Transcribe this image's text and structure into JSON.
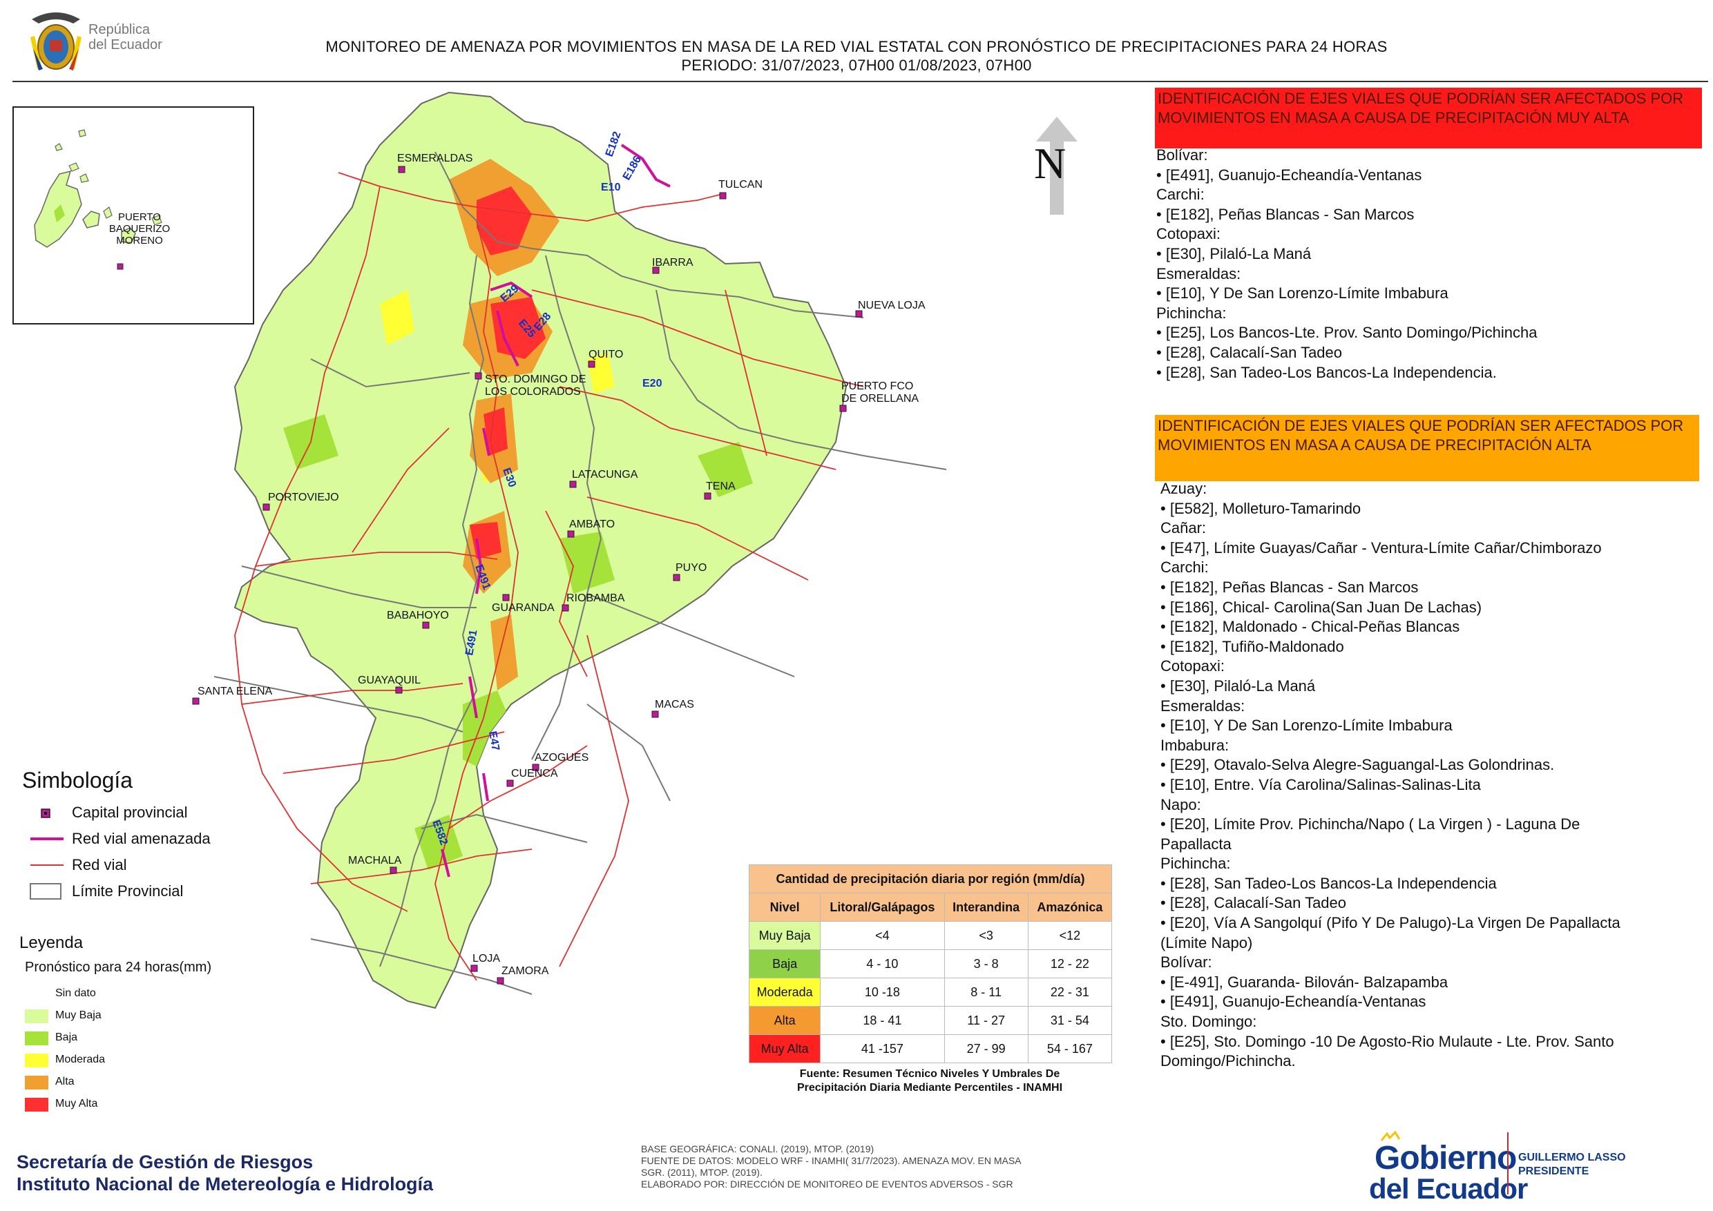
{
  "header": {
    "republic_line1": "República",
    "republic_line2": "del Ecuador",
    "title_line1": "MONITOREO DE AMENAZA POR MOVIMIENTOS EN MASA DE LA RED VIAL  ESTATAL  CON PRONÓSTICO  DE  PRECIPITACIONES PARA 24 HORAS",
    "title_line2": "PERIODO: 31/07/2023, 07H00 01/08/2023, 07H00"
  },
  "inset": {
    "label_line1": "PUERTO",
    "label_line2": "BAQUERIZO",
    "label_line3": "MORENO"
  },
  "map": {
    "north_label": "N",
    "cities": [
      {
        "name": "ESMERALDAS"
      },
      {
        "name": "TULCAN"
      },
      {
        "name": "IBARRA"
      },
      {
        "name": "NUEVA LOJA"
      },
      {
        "name": "QUITO"
      },
      {
        "name": "STO. DOMINGO DE"
      },
      {
        "name": "LOS COLORADOS"
      },
      {
        "name": "PUERTO FCO"
      },
      {
        "name": "DE ORELLANA"
      },
      {
        "name": "LATACUNGA"
      },
      {
        "name": "TENA"
      },
      {
        "name": "PORTOVIEJO"
      },
      {
        "name": "AMBATO"
      },
      {
        "name": "PUYO"
      },
      {
        "name": "GUARANDA"
      },
      {
        "name": "RIOBAMBA"
      },
      {
        "name": "BABAHOYO"
      },
      {
        "name": "GUAYAQUIL"
      },
      {
        "name": "SANTA ELENA"
      },
      {
        "name": "MACAS"
      },
      {
        "name": "AZOGUES"
      },
      {
        "name": "CUENCA"
      },
      {
        "name": "MACHALA"
      },
      {
        "name": "LOJA"
      },
      {
        "name": "ZAMORA"
      }
    ],
    "road_labels": [
      "E182",
      "E186",
      "E10",
      "E29",
      "E25",
      "E28",
      "E20",
      "E30",
      "E491",
      "E491",
      "E47",
      "E582"
    ],
    "colors": {
      "muy_baja": "#d9fb9c",
      "baja": "#a6e33a",
      "moderada": "#ffff33",
      "alta": "#f0a030",
      "muy_alta": "#ff3030",
      "road": "#e03030",
      "threatened_road": "#d0109a",
      "boundary": "#777777",
      "capital": "#c0189a"
    }
  },
  "red_panel": {
    "title": "IDENTIFICACIÓN DE EJES VIALES QUE PODRÍAN SER AFECTADOS POR MOVIMIENTOS EN MASA A CAUSA DE PRECIPITACIÓN MUY ALTA",
    "lines": [
      "Bolívar:",
      "• [E491], Guanujo-Echeandía-Ventanas",
      "Carchi:",
      "• [E182], Peñas Blancas - San Marcos",
      "Cotopaxi:",
      "• [E30], Pilaló-La Maná",
      "Esmeraldas:",
      "• [E10], Y De San Lorenzo-Límite Imbabura",
      "Pichincha:",
      "• [E25], Los Bancos-Lte. Prov. Santo Domingo/Pichincha",
      "• [E28], Calacalí-San Tadeo",
      "• [E28], San Tadeo-Los Bancos-La Independencia."
    ]
  },
  "orange_panel": {
    "title": "IDENTIFICACIÓN DE EJES VIALES QUE PODRÍAN SER AFECTADOS POR MOVIMIENTOS EN MASA A CAUSA DE PRECIPITACIÓN  ALTA",
    "lines": [
      "Azuay:",
      "• [E582], Molleturo-Tamarindo",
      "Cañar:",
      "• [E47], Límite Guayas/Cañar - Ventura-Límite Cañar/Chimborazo",
      "Carchi:",
      "• [E182], Peñas Blancas - San Marcos",
      "• [E186], Chical- Carolina(San Juan De Lachas)",
      "• [E182], Maldonado - Chical-Peñas Blancas",
      "• [E182], Tufiño-Maldonado",
      "Cotopaxi:",
      "• [E30], Pilaló-La Maná",
      "Esmeraldas:",
      "• [E10], Y De San Lorenzo-Límite Imbabura",
      "Imbabura:",
      "• [E29], Otavalo-Selva Alegre-Saguangal-Las Golondrinas.",
      "• [E10], Entre. Vía Carolina/Salinas-Salinas-Lita",
      "Napo:",
      "• [E20], Límite Prov. Pichincha/Napo ( La Virgen ) - Laguna De",
      "Papallacta",
      "Pichincha:",
      "• [E28], San Tadeo-Los Bancos-La Independencia",
      "• [E28], Calacalí-San Tadeo",
      "• [E20], Vía A Sangolquí (Pifo Y De Palugo)-La Virgen De Papallacta",
      "(Límite Napo)",
      "Bolívar:",
      "• [E-491], Guaranda- Bilován- Balzapamba",
      "• [E491], Guanujo-Echeandía-Ventanas",
      "Sto. Domingo:",
      "• [E25], Sto. Domingo -10 De Agosto-Rio Mulaute - Lte. Prov. Santo",
      "Domingo/Pichincha."
    ]
  },
  "simbologia": {
    "title": "Simbología",
    "items": [
      "Capital provincial",
      "Red vial amenazada",
      "Red vial",
      "Límite Provincial"
    ]
  },
  "leyenda": {
    "title": "Leyenda",
    "subtitle": "Pronóstico para 24 horas(mm)",
    "items": [
      {
        "label": "Sin dato",
        "color": "#ffffff"
      },
      {
        "label": "Muy Baja",
        "color": "#d9fb9c"
      },
      {
        "label": "Baja",
        "color": "#a6e33a"
      },
      {
        "label": "Moderada",
        "color": "#ffff33"
      },
      {
        "label": "Alta",
        "color": "#f0a030"
      },
      {
        "label": "Muy Alta",
        "color": "#ff3030"
      }
    ]
  },
  "precip_table": {
    "title": "Cantidad de precipitación diaria por región (mm/día)",
    "headers": [
      "Nivel",
      "Litoral/Galápagos",
      "Interandina",
      "Amazónica"
    ],
    "rows": [
      {
        "nivel": "Muy Baja",
        "color": "#d9fb9c",
        "litoral": "<4",
        "interandina": "<3",
        "amazonica": "<12"
      },
      {
        "nivel": "Baja",
        "color": "#8fd24a",
        "litoral": "4 - 10",
        "interandina": "3 - 8",
        "amazonica": "12 - 22"
      },
      {
        "nivel": "Moderada",
        "color": "#ffff33",
        "litoral": "10 -18",
        "interandina": "8 - 11",
        "amazonica": "22 - 31"
      },
      {
        "nivel": "Alta",
        "color": "#f59a30",
        "litoral": "18 - 41",
        "interandina": "11 - 27",
        "amazonica": "31 - 54"
      },
      {
        "nivel": "Muy Alta",
        "color": "#ff2020",
        "litoral": "41 -157",
        "interandina": "27 - 99",
        "amazonica": "54 - 167"
      }
    ],
    "source_line1": "Fuente: Resumen Técnico Niveles Y Umbrales De",
    "source_line2": "Precipitación Diaria Mediante Percentiles - INAMHI"
  },
  "footer": {
    "org_line1": "Secretaría de Gestión de Riesgos",
    "org_line2": "Instituto Nacional de Metereología e Hidrología",
    "credits": [
      "BASE GEOGRÁFICA: CONALI. (2019), MTOP. (2019)",
      "FUENTE DE DATOS: MODELO WRF - INAMHI( 31/7/2023).  AMENAZA MOV. EN MASA",
      "SGR. (2011), MTOP. (2019).",
      "ELABORADO POR: DIRECCIÓN DE MONITOREO DE EVENTOS ADVERSOS - SGR"
    ],
    "gob_line1": "Gobierno",
    "gob_line2": "del Ecuador",
    "president_line1": "GUILLERMO LASSO",
    "president_line2": "PRESIDENTE"
  }
}
